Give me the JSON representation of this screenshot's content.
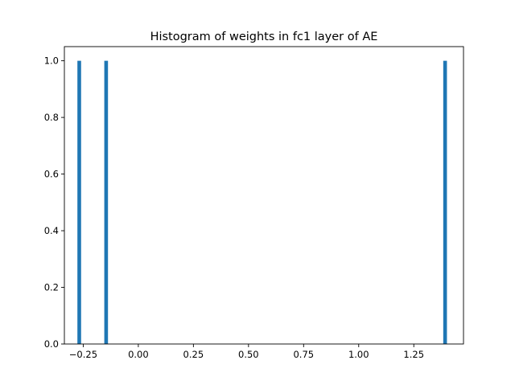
{
  "chart_data": {
    "type": "bar",
    "title": "Histogram of weights in fc1 layer of AE",
    "xlabel": "",
    "ylabel": "",
    "xlim": [
      -0.3355,
      1.4755
    ],
    "ylim": [
      0.0,
      1.05
    ],
    "bin_width": 0.0168,
    "bars": [
      {
        "x": -0.268,
        "value": 1
      },
      {
        "x": -0.146,
        "value": 1
      },
      {
        "x": 1.392,
        "value": 1
      }
    ],
    "x_ticks": [
      {
        "value": -0.25,
        "label": "−0.25"
      },
      {
        "value": 0.0,
        "label": "0.00"
      },
      {
        "value": 0.25,
        "label": "0.25"
      },
      {
        "value": 0.5,
        "label": "0.50"
      },
      {
        "value": 0.75,
        "label": "0.75"
      },
      {
        "value": 1.0,
        "label": "1.00"
      },
      {
        "value": 1.25,
        "label": "1.25"
      }
    ],
    "y_ticks": [
      {
        "value": 0.0,
        "label": "0.0"
      },
      {
        "value": 0.2,
        "label": "0.2"
      },
      {
        "value": 0.4,
        "label": "0.4"
      },
      {
        "value": 0.6,
        "label": "0.6"
      },
      {
        "value": 0.8,
        "label": "0.8"
      },
      {
        "value": 1.0,
        "label": "1.0"
      }
    ],
    "grid": false,
    "legend": "none",
    "colors": {
      "bar": "#1f77b4",
      "axes": "#000000",
      "background": "#ffffff"
    }
  }
}
